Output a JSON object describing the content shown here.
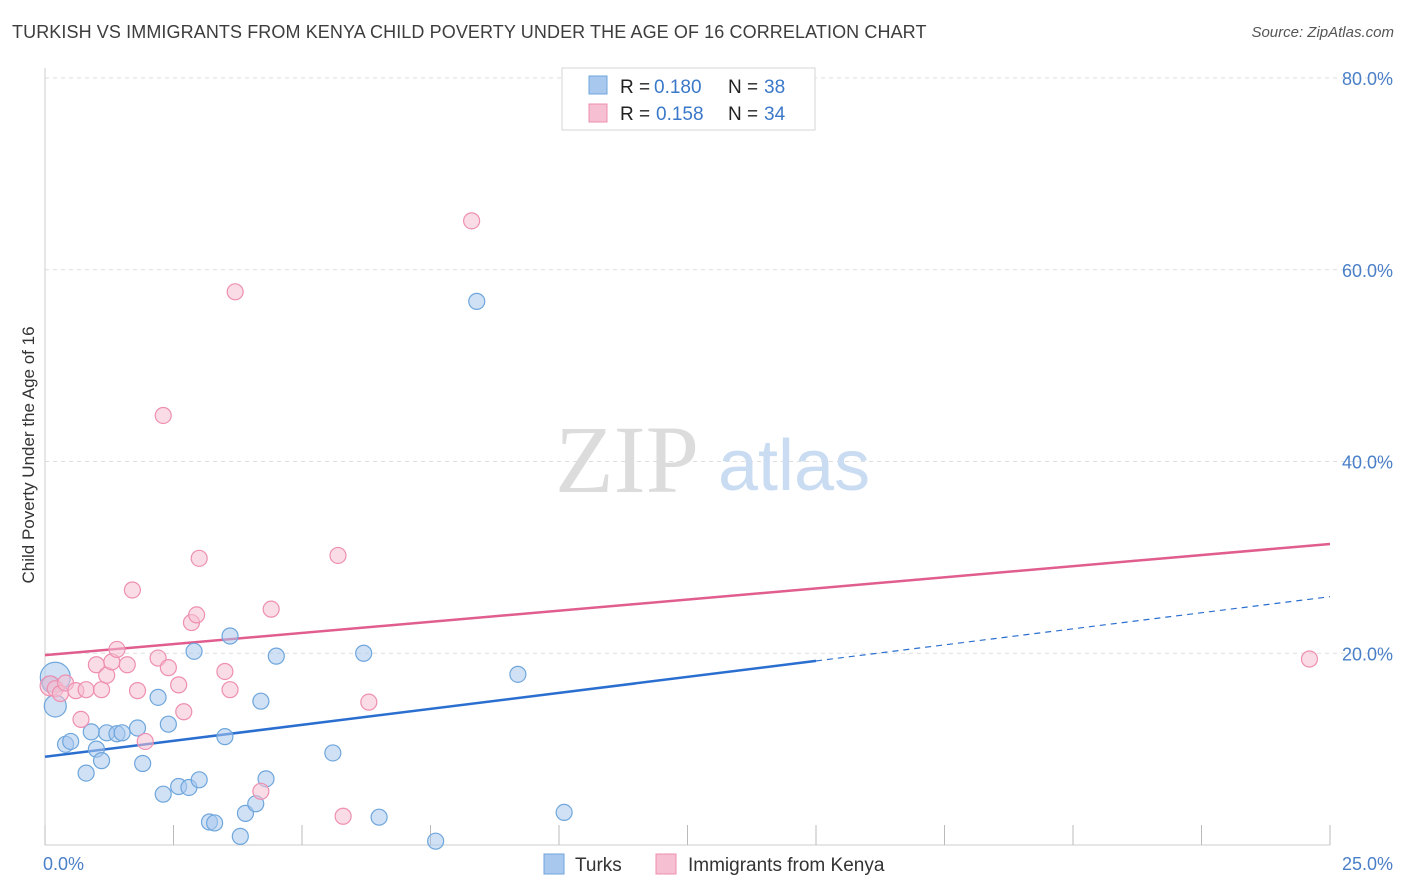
{
  "chart_data": {
    "type": "scatter",
    "title": "TURKISH VS IMMIGRANTS FROM KENYA CHILD POVERTY UNDER THE AGE OF 16 CORRELATION CHART",
    "source": "Source: ZipAtlas.com",
    "watermark": {
      "zip": "ZIP",
      "atlas": "atlas"
    },
    "xlabel": "",
    "ylabel": "Child Poverty Under the Age of 16",
    "xlim": [
      0,
      25
    ],
    "ylim": [
      0,
      80
    ],
    "x_tick_labels": [
      {
        "value": 0,
        "label": "0.0%"
      },
      {
        "value": 25,
        "label": "25.0%"
      }
    ],
    "y_tick_labels": [
      {
        "value": 20,
        "label": "20.0%"
      },
      {
        "value": 40,
        "label": "40.0%"
      },
      {
        "value": 60,
        "label": "60.0%"
      },
      {
        "value": 80,
        "label": "80.0%"
      }
    ],
    "grid": true,
    "legend_position": "top-center",
    "stats": [
      {
        "r_label": "R =",
        "r_value": "0.180",
        "n_label": "N =",
        "n_value": "38"
      },
      {
        "r_label": "R =",
        "r_value": "0.158",
        "n_label": "N =",
        "n_value": "34"
      }
    ],
    "series": [
      {
        "name": "Turks",
        "color": "#6ea6dc",
        "fill": "#a9c8ee",
        "line_color": "#2a6fd0",
        "trend": {
          "x0": 0,
          "y0": 9.2,
          "x1": 15,
          "y1": 19.2,
          "x_dash_end": 25,
          "y_dash_end": 25.9
        },
        "points": [
          [
            0.2,
            17.5,
            28
          ],
          [
            0.2,
            14.5,
            20
          ],
          [
            0.4,
            10.5,
            14
          ],
          [
            0.5,
            10.8,
            14
          ],
          [
            0.8,
            7.5,
            14
          ],
          [
            0.9,
            11.8,
            14
          ],
          [
            1.0,
            10.0,
            14
          ],
          [
            1.1,
            8.8,
            14
          ],
          [
            1.2,
            11.7,
            14
          ],
          [
            1.4,
            11.6,
            14
          ],
          [
            1.5,
            11.7,
            14
          ],
          [
            1.8,
            12.2,
            14
          ],
          [
            1.9,
            8.5,
            14
          ],
          [
            2.2,
            15.4,
            14
          ],
          [
            2.3,
            5.3,
            14
          ],
          [
            2.4,
            12.6,
            14
          ],
          [
            2.6,
            6.1,
            14
          ],
          [
            2.8,
            6.0,
            14
          ],
          [
            2.9,
            20.2,
            14
          ],
          [
            3.0,
            6.8,
            14
          ],
          [
            3.2,
            2.4,
            14
          ],
          [
            3.3,
            2.3,
            14
          ],
          [
            3.5,
            11.3,
            14
          ],
          [
            3.6,
            21.8,
            14
          ],
          [
            3.8,
            0.9,
            14
          ],
          [
            3.9,
            3.3,
            14
          ],
          [
            4.1,
            4.3,
            14
          ],
          [
            4.2,
            15.0,
            14
          ],
          [
            4.3,
            6.9,
            14
          ],
          [
            4.5,
            19.7,
            14
          ],
          [
            5.6,
            9.6,
            14
          ],
          [
            6.2,
            20.0,
            14
          ],
          [
            6.5,
            2.9,
            14
          ],
          [
            7.6,
            0.4,
            14
          ],
          [
            8.4,
            56.7,
            14
          ],
          [
            9.2,
            17.8,
            14
          ],
          [
            10.1,
            3.4,
            14
          ],
          [
            0.1,
            16.8,
            14
          ]
        ]
      },
      {
        "name": "Immigrants from Kenya",
        "color": "#ee8fb0",
        "fill": "#f6bfd2",
        "line_color": "#e05d8e",
        "trend": {
          "x0": 0,
          "y0": 19.8,
          "x1": 25,
          "y1": 31.4
        },
        "points": [
          [
            0.1,
            16.6,
            18
          ],
          [
            0.2,
            16.3,
            14
          ],
          [
            0.3,
            15.8,
            14
          ],
          [
            0.4,
            16.9,
            14
          ],
          [
            0.6,
            16.1,
            14
          ],
          [
            0.7,
            13.1,
            14
          ],
          [
            0.8,
            16.2,
            14
          ],
          [
            1.0,
            18.8,
            14
          ],
          [
            1.1,
            16.2,
            14
          ],
          [
            1.2,
            17.7,
            14
          ],
          [
            1.3,
            19.1,
            14
          ],
          [
            1.4,
            20.4,
            14
          ],
          [
            1.6,
            18.8,
            14
          ],
          [
            1.7,
            26.6,
            14
          ],
          [
            1.8,
            16.1,
            14
          ],
          [
            1.95,
            10.8,
            14
          ],
          [
            2.2,
            19.5,
            14
          ],
          [
            2.3,
            44.8,
            14
          ],
          [
            2.4,
            18.5,
            14
          ],
          [
            2.6,
            16.7,
            14
          ],
          [
            2.7,
            13.9,
            14
          ],
          [
            2.85,
            23.2,
            14
          ],
          [
            2.95,
            24.0,
            14
          ],
          [
            3.0,
            29.9,
            14
          ],
          [
            3.5,
            18.1,
            14
          ],
          [
            3.6,
            16.2,
            14
          ],
          [
            3.7,
            57.7,
            14
          ],
          [
            4.2,
            5.6,
            14
          ],
          [
            4.4,
            24.6,
            14
          ],
          [
            5.7,
            30.2,
            14
          ],
          [
            5.8,
            3.0,
            14
          ],
          [
            6.3,
            14.9,
            14
          ],
          [
            8.3,
            65.1,
            14
          ],
          [
            24.6,
            19.4,
            14
          ]
        ]
      }
    ]
  }
}
